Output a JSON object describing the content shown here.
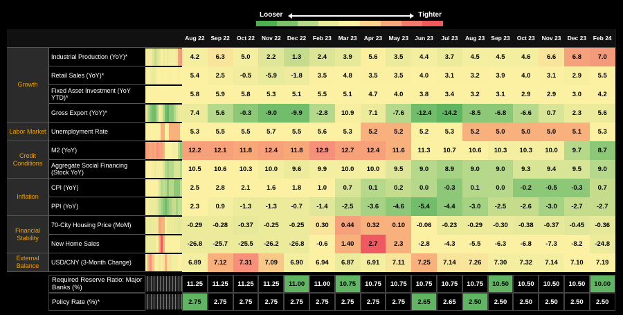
{
  "legend": {
    "looser": "Looser",
    "tighter": "Tighter",
    "colors": [
      "#4caf50",
      "#7cc06a",
      "#b5d88a",
      "#e8ec98",
      "#fdf2a0",
      "#fcd58a",
      "#f8a878",
      "#f27a6a",
      "#ee5a60"
    ]
  },
  "months": [
    "Aug 22",
    "Sep 22",
    "Oct 22",
    "Nov 22",
    "Dec 22",
    "Feb 23",
    "Mar 23",
    "Apr 23",
    "May 23",
    "Jun 23",
    "Jul 23",
    "Aug 23",
    "Sep 23",
    "Oct 23",
    "Nov 23",
    "Dec 23",
    "Feb 24"
  ],
  "categories": [
    {
      "label": "Growth",
      "rows": 4
    },
    {
      "label": "Labor Market",
      "rows": 1
    },
    {
      "label": "Credit Conditions",
      "rows": 2
    },
    {
      "label": "Inflation",
      "rows": 2
    },
    {
      "label": "Financial Stability",
      "rows": 2
    },
    {
      "label": "External Balance",
      "rows": 1
    }
  ],
  "rows": [
    {
      "label": "Industrial Production (YoY)*",
      "values": [
        "4.2",
        "6.3",
        "5.0",
        "2.2",
        "1.3",
        "2.4",
        "3.9",
        "5.6",
        "3.5",
        "4.4",
        "3.7",
        "4.5",
        "4.5",
        "4.6",
        "6.6",
        "6.8",
        "7.0"
      ],
      "colors": [
        "#f4efa0",
        "#f8e49a",
        "#f4efa0",
        "#dfe69a",
        "#c5dc8c",
        "#dce596",
        "#e6e99a",
        "#fbefa0",
        "#eceb9c",
        "#f4efa0",
        "#eceb9c",
        "#f4efa0",
        "#f4efa0",
        "#f4efa0",
        "#f8e49a",
        "#f5a27c",
        "#f29a7a"
      ]
    },
    {
      "label": "Retail Sales (YoY)*",
      "values": [
        "5.4",
        "2.5",
        "-0.5",
        "-5.9",
        "-1.8",
        "3.5",
        "4.8",
        "3.5",
        "3.5",
        "4.0",
        "3.1",
        "3.2",
        "3.9",
        "4.0",
        "3.1",
        "2.9",
        "5.5"
      ],
      "colors": [
        "#fcf0a2",
        "#f7eea0",
        "#f1ec9e",
        "#e8ea9c",
        "#eeeb9e",
        "#fbefa2",
        "#fcf0a2",
        "#fbefa2",
        "#fbefa2",
        "#fcf0a2",
        "#fbefa2",
        "#fbefa2",
        "#fcf0a2",
        "#fcf0a2",
        "#fbefa2",
        "#f7eea0",
        "#fcf0a2"
      ]
    },
    {
      "label": "Fixed Asset Investment (YoY YTD)*",
      "values": [
        "5.8",
        "5.9",
        "5.8",
        "5.3",
        "5.1",
        "5.5",
        "5.1",
        "4.7",
        "4.0",
        "3.8",
        "3.4",
        "3.2",
        "3.1",
        "2.9",
        "2.9",
        "3.0",
        "4.2"
      ],
      "colors": [
        "#fcf0a2",
        "#fcf0a2",
        "#fcf0a2",
        "#fcf0a2",
        "#fcf0a2",
        "#fcf0a2",
        "#fcf0a2",
        "#fcf0a2",
        "#fcf0a2",
        "#fcf0a2",
        "#fcf0a2",
        "#fcf0a2",
        "#fcf0a2",
        "#fcf0a2",
        "#fcf0a2",
        "#fcf0a2",
        "#fcf0a2"
      ]
    },
    {
      "label": "Gross Export (YoY)*",
      "values": [
        "7.4",
        "5.6",
        "-0.3",
        "-9.0",
        "-9.9",
        "-2.8",
        "10.9",
        "7.1",
        "-7.6",
        "-12.4",
        "-14.2",
        "-8.5",
        "-6.8",
        "-6.6",
        "0.7",
        "2.3",
        "5.6"
      ],
      "colors": [
        "#eceb9c",
        "#b5d88a",
        "#8cc878",
        "#72bd6c",
        "#72bd6c",
        "#b5d88a",
        "#f7eea0",
        "#eceb9c",
        "#b5d88a",
        "#72bd6c",
        "#5fb562",
        "#8cc878",
        "#8cc878",
        "#b5d88a",
        "#d8e496",
        "#eceb9c",
        "#eceb9c"
      ]
    },
    {
      "label": "Unemployment Rate",
      "values": [
        "5.3",
        "5.5",
        "5.5",
        "5.7",
        "5.5",
        "5.6",
        "5.3",
        "5.2",
        "5.2",
        "5.2",
        "5.3",
        "5.2",
        "5.0",
        "5.0",
        "5.0",
        "5.1",
        "5.3"
      ],
      "colors": [
        "#fcf0a2",
        "#fcf0a2",
        "#fcf0a2",
        "#fcf0a2",
        "#fcf0a2",
        "#fcf0a2",
        "#fcf0a2",
        "#f8b07c",
        "#f8b07c",
        "#fcf0a2",
        "#fcf0a2",
        "#f8b07c",
        "#f8b07c",
        "#f8b07c",
        "#f8b07c",
        "#f8b07c",
        "#fcf0a2"
      ]
    },
    {
      "label": "M2 (YoY)",
      "values": [
        "12.2",
        "12.1",
        "11.8",
        "12.4",
        "11.8",
        "12.9",
        "12.7",
        "12.4",
        "11.6",
        "11.3",
        "10.7",
        "10.6",
        "10.3",
        "10.3",
        "10.0",
        "9.7",
        "8.7"
      ],
      "colors": [
        "#f7a07a",
        "#f7a07a",
        "#f8a878",
        "#f7a07a",
        "#f8a878",
        "#f6907a",
        "#f7a07a",
        "#f7a07a",
        "#f8b07c",
        "#fcf0a2",
        "#fcf0a2",
        "#fcf0a2",
        "#f4efa0",
        "#f4efa0",
        "#f4efa0",
        "#b5d88a",
        "#8cc878"
      ]
    },
    {
      "label": "Aggregate Social Financing (Stock YoY)",
      "values": [
        "10.5",
        "10.6",
        "10.3",
        "10.0",
        "9.6",
        "9.9",
        "10.0",
        "10.0",
        "9.5",
        "9.0",
        "8.9",
        "9.0",
        "9.0",
        "9.3",
        "9.4",
        "9.5",
        "9.0"
      ],
      "colors": [
        "#fcf0a2",
        "#fcf0a2",
        "#fcf0a2",
        "#f4efa0",
        "#eceb9c",
        "#f4efa0",
        "#f4efa0",
        "#f4efa0",
        "#dfe69a",
        "#b5d88a",
        "#a6d284",
        "#b5d88a",
        "#b5d88a",
        "#d8e496",
        "#d8e496",
        "#d8e496",
        "#b5d88a"
      ]
    },
    {
      "label": "CPI (YoY)",
      "values": [
        "2.5",
        "2.8",
        "2.1",
        "1.6",
        "1.8",
        "1.0",
        "0.7",
        "0.1",
        "0.2",
        "0.0",
        "-0.3",
        "0.1",
        "0.0",
        "-0.2",
        "-0.5",
        "-0.3",
        "0.7"
      ],
      "colors": [
        "#fcf0a2",
        "#fcf0a2",
        "#fcf0a2",
        "#fcf0a2",
        "#fcf0a2",
        "#fcf0a2",
        "#d8e496",
        "#b5d88a",
        "#c5dc8c",
        "#b5d88a",
        "#8cc878",
        "#b5d88a",
        "#b5d88a",
        "#8cc878",
        "#8cc878",
        "#8cc878",
        "#c5dc8c"
      ]
    },
    {
      "label": "PPI (YoY)",
      "values": [
        "2.3",
        "0.9",
        "-1.3",
        "-1.3",
        "-0.7",
        "-1.4",
        "-2.5",
        "-3.6",
        "-4.6",
        "-5.4",
        "-4.4",
        "-3.0",
        "-2.5",
        "-2.6",
        "-3.0",
        "-2.7",
        "-2.7"
      ],
      "colors": [
        "#fcf0a2",
        "#f4efa0",
        "#eceb9c",
        "#eceb9c",
        "#eceb9c",
        "#e0e79a",
        "#c5dc8c",
        "#a6d284",
        "#8cc878",
        "#72bd6c",
        "#8cc878",
        "#a6d284",
        "#c5dc8c",
        "#c5dc8c",
        "#a6d284",
        "#c5dc8c",
        "#c5dc8c"
      ]
    },
    {
      "label": "70-City Housing Price (MoM)",
      "values": [
        "-0.29",
        "-0.28",
        "-0.37",
        "-0.25",
        "-0.25",
        "0.30",
        "0.44",
        "0.32",
        "0.10",
        "-0.06",
        "-0.23",
        "-0.29",
        "-0.30",
        "-0.38",
        "-0.37",
        "-0.45",
        "-0.36"
      ],
      "colors": [
        "#eceb9c",
        "#eceb9c",
        "#e6e99a",
        "#eceb9c",
        "#eceb9c",
        "#f8e49a",
        "#f5a27c",
        "#f8b07c",
        "#f8b07c",
        "#fcf0a2",
        "#eceb9c",
        "#eceb9c",
        "#eceb9c",
        "#e6e99a",
        "#e6e99a",
        "#e0e79a",
        "#e6e99a"
      ]
    },
    {
      "label": "New Home Sales",
      "values": [
        "-26.8",
        "-25.7",
        "-25.5",
        "-26.2",
        "-26.8",
        "-0.6",
        "1.40",
        "2.7",
        "2.3",
        "-2.8",
        "-4.3",
        "-5.5",
        "-6.3",
        "-6.8",
        "-7.3",
        "-8.2",
        "-24.8"
      ],
      "colors": [
        "#eceb9c",
        "#eceb9c",
        "#eceb9c",
        "#eceb9c",
        "#eceb9c",
        "#fcf0a2",
        "#f8b07c",
        "#ee5a60",
        "#f8b07c",
        "#fcf0a2",
        "#fcf0a2",
        "#fcf0a2",
        "#fcf0a2",
        "#fcf0a2",
        "#fcf0a2",
        "#fcf0a2",
        "#eceb9c"
      ]
    },
    {
      "label": "USD/CNY (3-Month Change)",
      "values": [
        "6.89",
        "7.12",
        "7.31",
        "7.09",
        "6.90",
        "6.94",
        "6.87",
        "6.91",
        "7.11",
        "7.25",
        "7.14",
        "7.26",
        "7.30",
        "7.32",
        "7.14",
        "7.10",
        "7.19"
      ],
      "colors": [
        "#f4efa0",
        "#f8b07c",
        "#f6907a",
        "#f8c888",
        "#f4efa0",
        "#fcf0a2",
        "#eceb9c",
        "#f4efa0",
        "#f8e49a",
        "#f8b07c",
        "#f8e49a",
        "#f8e49a",
        "#f4efa0",
        "#f4efa0",
        "#f4efa0",
        "#fcf0a2",
        "#fcf0a2"
      ]
    }
  ],
  "bottom": [
    {
      "label": "Required Reserve Ratio: Major Banks (%)",
      "values": [
        "11.25",
        "11.25",
        "11.25",
        "11.25",
        "11.00",
        "11.00",
        "10.75",
        "10.75",
        "10.75",
        "10.75",
        "10.75",
        "10.75",
        "10.50",
        "10.50",
        "10.50",
        "10.50",
        "10.00"
      ],
      "highlight": [
        false,
        false,
        false,
        false,
        true,
        false,
        true,
        false,
        false,
        false,
        false,
        false,
        true,
        false,
        false,
        false,
        true
      ]
    },
    {
      "label": "Policy Rate (%)*",
      "values": [
        "2.75",
        "2.75",
        "2.75",
        "2.75",
        "2.75",
        "2.75",
        "2.75",
        "2.75",
        "2.75",
        "2.65",
        "2.65",
        "2.50",
        "2.50",
        "2.50",
        "2.50",
        "2.50",
        "2.50"
      ],
      "highlight": [
        true,
        false,
        false,
        false,
        false,
        false,
        false,
        false,
        false,
        true,
        false,
        true,
        false,
        false,
        false,
        false,
        false
      ]
    }
  ]
}
